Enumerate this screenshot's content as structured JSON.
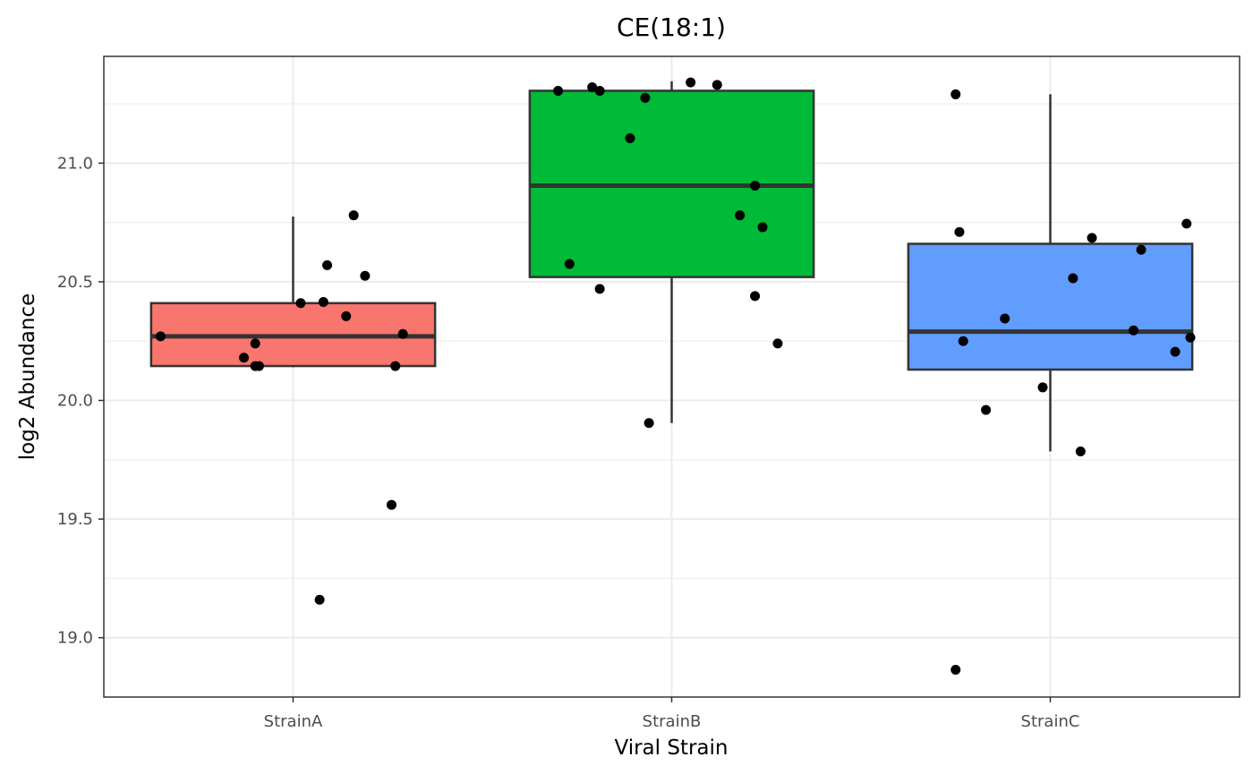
{
  "chart_data": {
    "type": "boxplot",
    "title": "CE(18:1)",
    "xlabel": "Viral Strain",
    "ylabel": "log2 Abundance",
    "ylim": [
      18.75,
      21.45
    ],
    "yticks": [
      19.0,
      19.5,
      20.0,
      20.5,
      21.0
    ],
    "ytick_labels": [
      "19.0",
      "19.5",
      "20.0",
      "20.5",
      "21.0"
    ],
    "grid": true,
    "categories": [
      "StrainA",
      "StrainB",
      "StrainC"
    ],
    "boxes": [
      {
        "name": "StrainA",
        "color": "#F8766D",
        "whisker_low": 20.14,
        "q1": 20.145,
        "median": 20.27,
        "q3": 20.41,
        "whisker_high": 20.775
      },
      {
        "name": "StrainB",
        "color": "#00BA38",
        "whisker_low": 19.905,
        "q1": 20.52,
        "median": 20.905,
        "q3": 21.305,
        "whisker_high": 21.345
      },
      {
        "name": "StrainC",
        "color": "#619CFF",
        "whisker_low": 19.785,
        "q1": 20.13,
        "median": 20.29,
        "q3": 20.66,
        "whisker_high": 21.29
      }
    ],
    "points": [
      {
        "group": "StrainA",
        "values": [
          20.27,
          20.18,
          20.145,
          20.145,
          20.24,
          20.41,
          20.415,
          20.57,
          20.355,
          20.78,
          20.525,
          20.28,
          20.145,
          19.56,
          19.16
        ]
      },
      {
        "group": "StrainB",
        "values": [
          21.305,
          21.32,
          21.305,
          21.275,
          21.34,
          21.33,
          21.105,
          20.905,
          20.78,
          20.73,
          20.575,
          20.47,
          20.44,
          20.24,
          19.905
        ]
      },
      {
        "group": "StrainC",
        "values": [
          21.29,
          20.71,
          20.685,
          20.635,
          20.745,
          20.515,
          20.345,
          20.25,
          20.295,
          20.265,
          20.205,
          20.055,
          19.96,
          19.785,
          18.865
        ]
      }
    ]
  }
}
